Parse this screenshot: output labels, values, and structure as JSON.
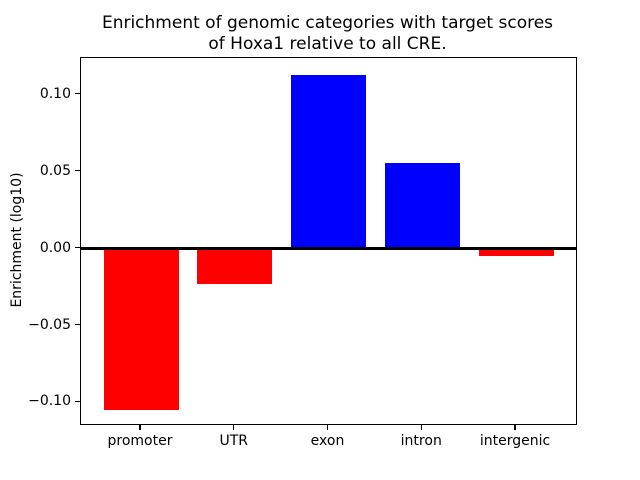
{
  "chart_data": {
    "type": "bar",
    "title": "Enrichment of genomic categories with target scores\nof Hoxa1 relative to all CRE.",
    "xlabel": "",
    "ylabel": "Enrichment (log10)",
    "categories": [
      "promoter",
      "UTR",
      "exon",
      "intron",
      "intergenic"
    ],
    "values": [
      -0.105,
      -0.023,
      0.113,
      0.056,
      -0.005
    ],
    "bar_width": 0.8,
    "xlim": [
      -0.64,
      4.64
    ],
    "ylim": [
      -0.114,
      0.124
    ],
    "yticks": [
      {
        "value": 0.1,
        "label": "0.10"
      },
      {
        "value": 0.05,
        "label": "0.05"
      },
      {
        "value": 0.0,
        "label": "0.00"
      },
      {
        "value": -0.05,
        "label": "−0.05"
      },
      {
        "value": -0.1,
        "label": "−0.10"
      }
    ],
    "positive_color": "#0000ff",
    "negative_color": "#ff0000",
    "zero_line": true,
    "zero_line_color": "#000000",
    "grid": false,
    "legend": null,
    "background_color": "#ffffff",
    "axis_color": "#000000"
  }
}
